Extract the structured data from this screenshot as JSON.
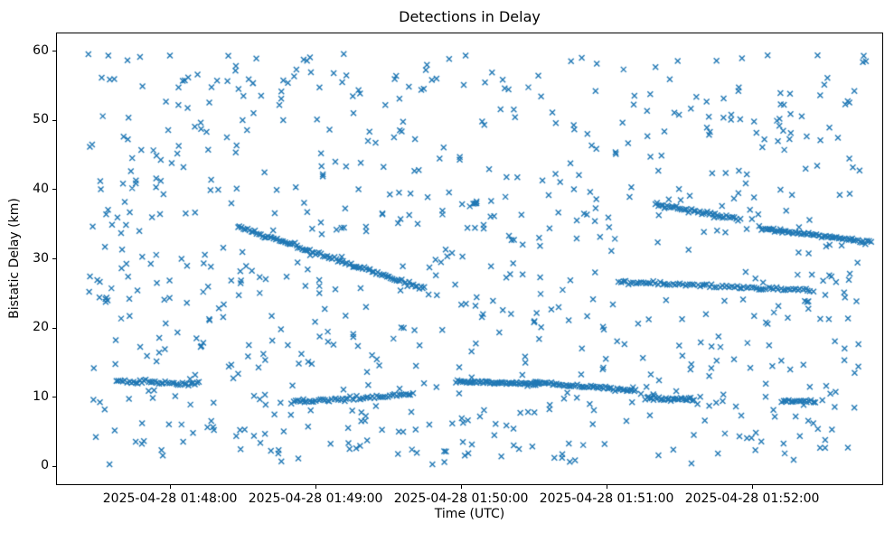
{
  "chart_data": {
    "type": "scatter",
    "title": "Detections in Delay",
    "xlabel": "Time (UTC)",
    "ylabel": "Bistatic Delay (km)",
    "marker": "x",
    "marker_color": "#1f77b4",
    "marker_size_px": 6,
    "background_color": "#ffffff",
    "x_axis": {
      "reference_time": "2025-04-28 01:48:00",
      "lim_seconds": [
        -47,
        294
      ],
      "ticks": [
        {
          "t": 0,
          "label": "2025-04-28 01:48:00"
        },
        {
          "t": 60,
          "label": "2025-04-28 01:49:00"
        },
        {
          "t": 120,
          "label": "2025-04-28 01:50:00"
        },
        {
          "t": 180,
          "label": "2025-04-28 01:51:00"
        },
        {
          "t": 240,
          "label": "2025-04-28 01:52:00"
        }
      ]
    },
    "y_axis": {
      "lim": [
        -2.7,
        62.7
      ],
      "ticks": [
        0,
        10,
        20,
        30,
        40,
        50,
        60
      ]
    },
    "grid": false,
    "legend": null,
    "seed": 20250428,
    "clutter": {
      "count": 780,
      "t_range_seconds": [
        -34,
        288
      ],
      "y_range_km": [
        0.3,
        59.7
      ]
    },
    "tracks": [
      {
        "t_start": -22,
        "t_end": 12,
        "y_start": 12.3,
        "y_end": 11.9,
        "points": 40
      },
      {
        "t_start": 28,
        "t_end": 105,
        "y_start": 34.6,
        "y_end": 25.6,
        "points": 100
      },
      {
        "t_start": 50,
        "t_end": 100,
        "y_start": 9.3,
        "y_end": 10.4,
        "points": 55
      },
      {
        "t_start": 118,
        "t_end": 152,
        "y_start": 12.3,
        "y_end": 11.9,
        "points": 50
      },
      {
        "t_start": 150,
        "t_end": 192,
        "y_start": 12.1,
        "y_end": 11.0,
        "points": 55
      },
      {
        "t_start": 196,
        "t_end": 216,
        "y_start": 9.9,
        "y_end": 9.6,
        "points": 30
      },
      {
        "t_start": 185,
        "t_end": 265,
        "y_start": 26.7,
        "y_end": 25.4,
        "points": 80
      },
      {
        "t_start": 200,
        "t_end": 235,
        "y_start": 37.9,
        "y_end": 35.7,
        "points": 45
      },
      {
        "t_start": 243,
        "t_end": 289,
        "y_start": 34.4,
        "y_end": 32.4,
        "points": 60
      },
      {
        "t_start": 252,
        "t_end": 266,
        "y_start": 9.5,
        "y_end": 9.4,
        "points": 18
      }
    ],
    "track_jitter": {
      "y_sd": 0.13,
      "t_frac": 0.6
    }
  }
}
